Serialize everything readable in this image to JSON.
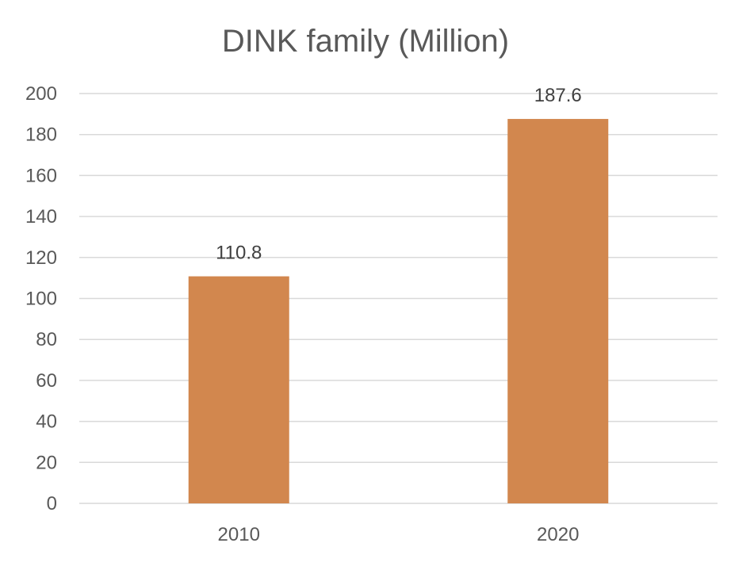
{
  "chart_data": {
    "type": "bar",
    "title": "DINK family (Million)",
    "categories": [
      "2010",
      "2020"
    ],
    "values": [
      110.8,
      187.6
    ],
    "data_labels": [
      "110.8",
      "187.6"
    ],
    "ylim": [
      0,
      200
    ],
    "yticks": [
      0,
      20,
      40,
      60,
      80,
      100,
      120,
      140,
      160,
      180,
      200
    ],
    "ytick_labels": [
      "0",
      "20",
      "40",
      "60",
      "80",
      "100",
      "120",
      "140",
      "160",
      "180",
      "200"
    ],
    "grid": true,
    "bar_color": "#D2874E",
    "gridline_color": "#D9D9D9"
  }
}
